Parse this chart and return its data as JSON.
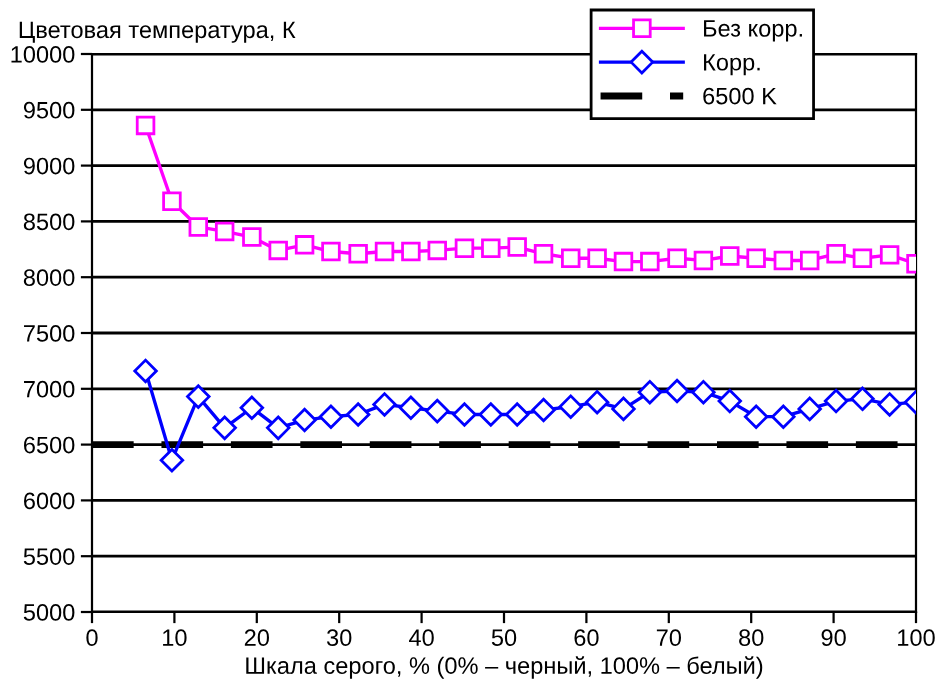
{
  "chart_data": {
    "type": "line",
    "ylabel": "Цветовая температура, К",
    "xlabel": "Шкала серого, % (0% – черный, 100% – белый)",
    "x": [
      6.5,
      9.7,
      12.9,
      16.1,
      19.4,
      22.6,
      25.8,
      29.0,
      32.3,
      35.5,
      38.7,
      41.9,
      45.2,
      48.4,
      51.6,
      54.8,
      58.1,
      61.3,
      64.5,
      67.7,
      71.0,
      74.2,
      77.4,
      80.6,
      83.9,
      87.1,
      90.3,
      93.5,
      96.8,
      100
    ],
    "series": [
      {
        "name": "Без корр.",
        "color": "#ff00ff",
        "marker": "square",
        "values": [
          9360,
          8680,
          8450,
          8410,
          8360,
          8240,
          8290,
          8230,
          8210,
          8230,
          8230,
          8240,
          8260,
          8260,
          8270,
          8210,
          8170,
          8170,
          8140,
          8140,
          8170,
          8150,
          8190,
          8170,
          8150,
          8150,
          8210,
          8170,
          8200,
          8120
        ]
      },
      {
        "name": "Корр.",
        "color": "#0000ff",
        "marker": "diamond",
        "values": [
          7160,
          6360,
          6930,
          6650,
          6830,
          6650,
          6720,
          6750,
          6770,
          6860,
          6830,
          6800,
          6770,
          6770,
          6770,
          6810,
          6840,
          6880,
          6820,
          6970,
          6980,
          6970,
          6890,
          6750,
          6750,
          6820,
          6890,
          6910,
          6860,
          6880
        ]
      }
    ],
    "ref_lines": [
      {
        "axis": "y",
        "value": 6500,
        "label": "6500 K",
        "color": "#000000",
        "line_style": "dashed"
      }
    ],
    "xlim": [
      0,
      100
    ],
    "xticks": [
      0,
      10,
      20,
      30,
      40,
      50,
      60,
      70,
      80,
      90,
      100
    ],
    "ylim": [
      5000,
      10000
    ],
    "yticks": [
      5000,
      5500,
      6000,
      6500,
      7000,
      7500,
      8000,
      8500,
      9000,
      9500,
      10000
    ],
    "grid": "y",
    "legend": "top right",
    "line_style": "solid"
  }
}
